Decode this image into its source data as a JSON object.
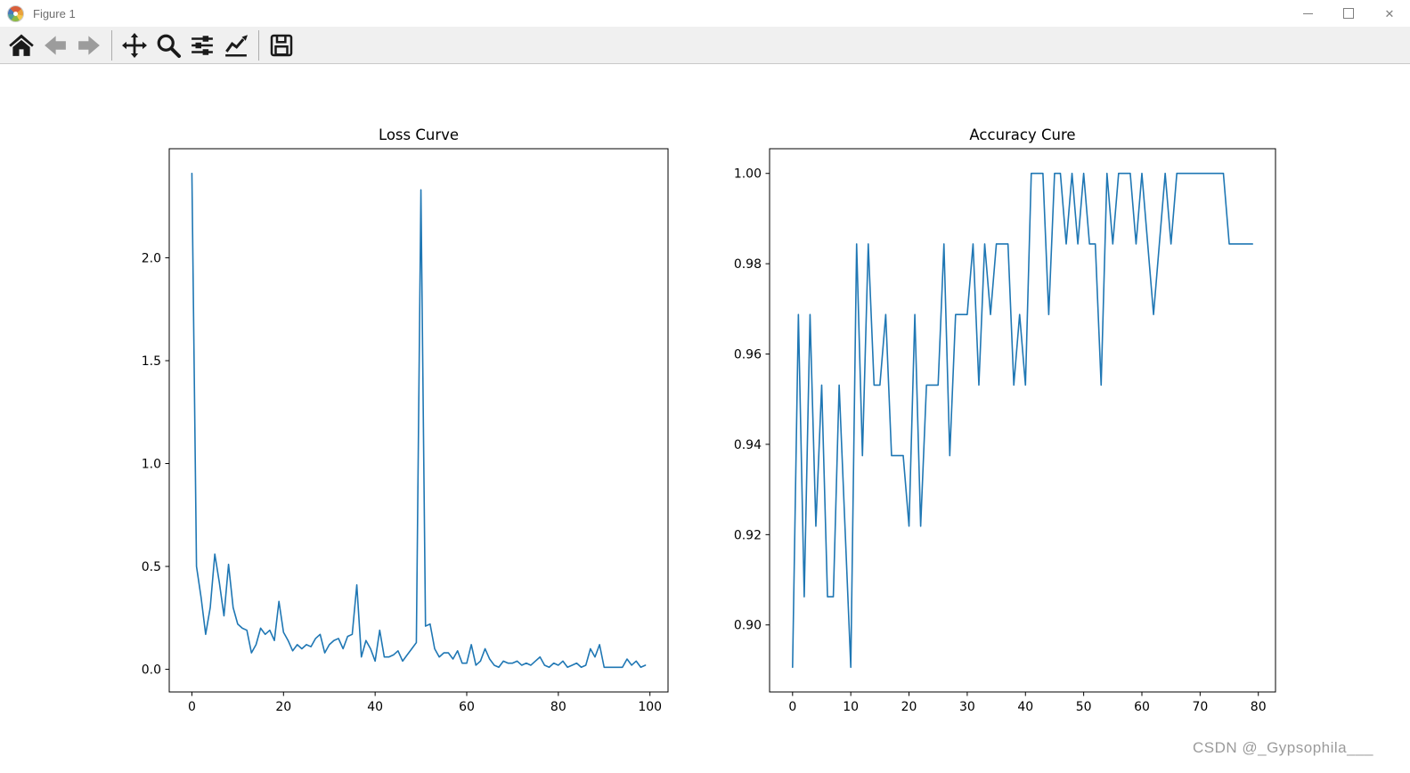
{
  "window": {
    "title": "Figure 1",
    "app_icon": "matplotlib-logo-icon",
    "controls": [
      "minimize",
      "maximize",
      "close"
    ]
  },
  "toolbar": {
    "background": "#f0f0f0",
    "buttons": [
      {
        "name": "home",
        "icon": "home-icon"
      },
      {
        "name": "back",
        "icon": "back-arrow-icon"
      },
      {
        "name": "forward",
        "icon": "forward-arrow-icon"
      },
      {
        "name": "pan",
        "icon": "pan-move-icon"
      },
      {
        "name": "zoom",
        "icon": "zoom-magnifier-icon"
      },
      {
        "name": "configure-subplots",
        "icon": "sliders-icon"
      },
      {
        "name": "edit-axes",
        "icon": "line-chart-icon"
      },
      {
        "name": "save",
        "icon": "save-floppy-icon"
      }
    ]
  },
  "watermark": {
    "text": "CSDN @_Gypsophila___",
    "color": "#9b9b9b"
  },
  "chart_data": [
    {
      "type": "line",
      "title": "Loss Curve",
      "xlabel": "",
      "ylabel": "",
      "legend": null,
      "grid": false,
      "line_color": "#1f77b4",
      "x_start": 0,
      "xlim": [
        -4.95,
        103.95
      ],
      "ylim": [
        -0.11,
        2.53
      ],
      "xticks": [
        0,
        20,
        40,
        60,
        80,
        100
      ],
      "ytick_values": [
        0.0,
        0.5,
        1.0,
        1.5,
        2.0
      ],
      "yticks": [
        "0.0",
        "0.5",
        "1.0",
        "1.5",
        "2.0"
      ],
      "values": [
        2.41,
        0.5,
        0.35,
        0.17,
        0.3,
        0.56,
        0.42,
        0.26,
        0.51,
        0.3,
        0.22,
        0.2,
        0.19,
        0.08,
        0.12,
        0.2,
        0.17,
        0.19,
        0.14,
        0.33,
        0.18,
        0.14,
        0.09,
        0.12,
        0.1,
        0.12,
        0.11,
        0.15,
        0.17,
        0.08,
        0.12,
        0.14,
        0.15,
        0.1,
        0.16,
        0.17,
        0.41,
        0.06,
        0.14,
        0.1,
        0.04,
        0.19,
        0.06,
        0.06,
        0.07,
        0.09,
        0.04,
        0.07,
        0.1,
        0.13,
        2.33,
        0.21,
        0.22,
        0.1,
        0.06,
        0.08,
        0.08,
        0.05,
        0.09,
        0.03,
        0.03,
        0.12,
        0.02,
        0.04,
        0.1,
        0.05,
        0.02,
        0.01,
        0.04,
        0.03,
        0.03,
        0.04,
        0.02,
        0.03,
        0.02,
        0.04,
        0.06,
        0.02,
        0.01,
        0.03,
        0.02,
        0.04,
        0.01,
        0.02,
        0.03,
        0.01,
        0.02,
        0.1,
        0.06,
        0.12,
        0.01,
        0.01,
        0.01,
        0.01,
        0.01,
        0.05,
        0.02,
        0.04,
        0.01,
        0.02
      ]
    },
    {
      "type": "line",
      "title": "Accuracy Cure",
      "xlabel": "",
      "ylabel": "",
      "legend": null,
      "grid": false,
      "line_color": "#1f77b4",
      "x_start": 0,
      "xlim": [
        -3.95,
        82.95
      ],
      "ylim": [
        0.885156,
        1.005469
      ],
      "xticks": [
        0,
        10,
        20,
        30,
        40,
        50,
        60,
        70,
        80
      ],
      "ytick_values": [
        1.0,
        0.98,
        0.96,
        0.94,
        0.92,
        0.9
      ],
      "yticks": [
        "1.00",
        "0.98",
        "0.96",
        "0.94",
        "0.92",
        "0.90"
      ],
      "values": [
        0.890625,
        0.96875,
        0.90625,
        0.96875,
        0.921875,
        0.953125,
        0.90625,
        0.90625,
        0.953125,
        0.921875,
        0.890625,
        0.984375,
        0.9375,
        0.984375,
        0.953125,
        0.953125,
        0.96875,
        0.9375,
        0.9375,
        0.9375,
        0.921875,
        0.96875,
        0.921875,
        0.953125,
        0.953125,
        0.953125,
        0.984375,
        0.9375,
        0.96875,
        0.96875,
        0.96875,
        0.984375,
        0.953125,
        0.984375,
        0.96875,
        0.984375,
        0.984375,
        0.984375,
        0.953125,
        0.96875,
        0.953125,
        1.0,
        1.0,
        1.0,
        0.96875,
        1.0,
        1.0,
        0.984375,
        1.0,
        0.984375,
        1.0,
        0.984375,
        0.984375,
        0.953125,
        1.0,
        0.984375,
        1.0,
        1.0,
        1.0,
        0.984375,
        1.0,
        0.984375,
        0.96875,
        0.984375,
        1.0,
        0.984375,
        1.0,
        1.0,
        1.0,
        1.0,
        1.0,
        1.0,
        1.0,
        1.0,
        1.0,
        0.984375,
        0.984375,
        0.984375,
        0.984375,
        0.984375
      ]
    }
  ]
}
